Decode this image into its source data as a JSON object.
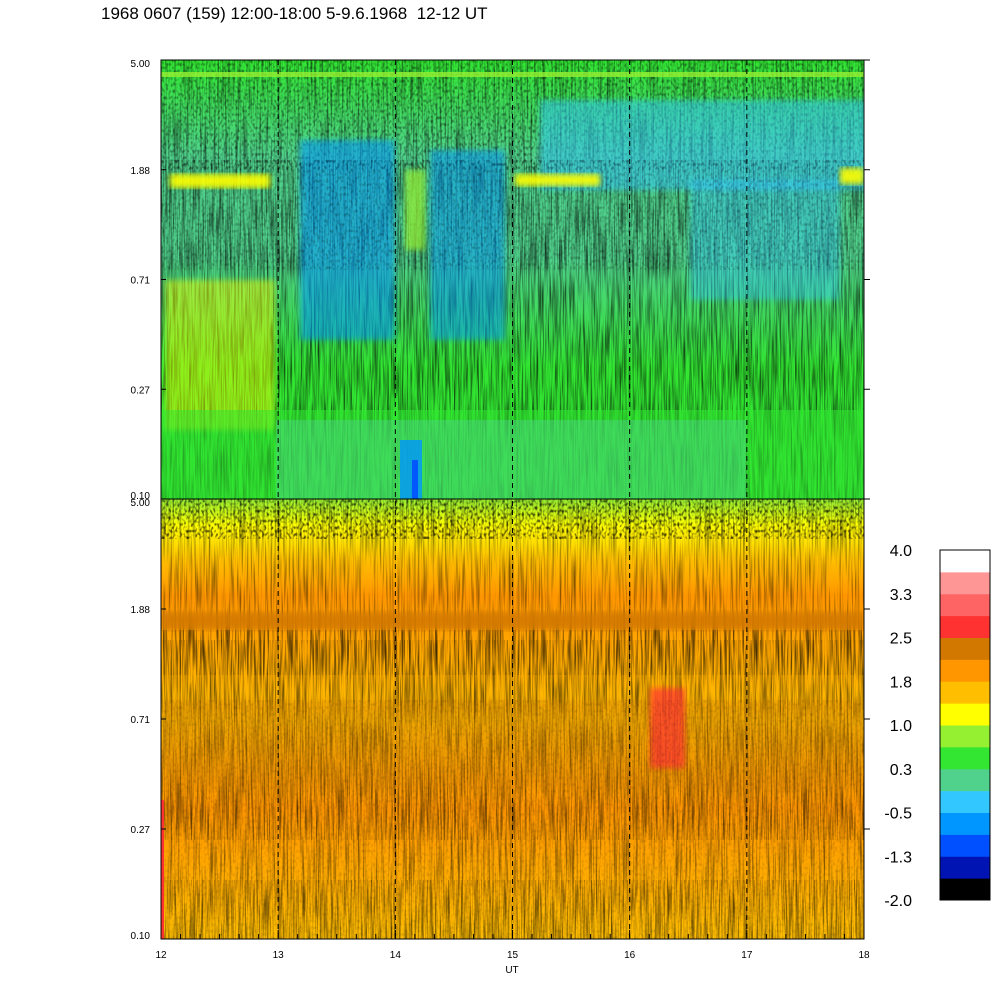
{
  "title": "1968 0607 (159) 12:00-18:00 5-9.6.1968  12-12 UT",
  "chart_data": [
    {
      "type": "heatmap",
      "panel": "upper",
      "x_range": [
        12,
        18
      ],
      "y_scale": "log",
      "y_ticks": [
        "5.00",
        "1.88",
        "0.71",
        "0.27",
        "0.10"
      ],
      "time_markers": [
        13,
        14,
        15,
        16,
        17
      ],
      "dominant_levels": {
        "background": 0.3,
        "upper_band_yellow_segments": [
          [
            12.1,
            12.9,
            1.0
          ],
          [
            15.1,
            15.8,
            1.0
          ],
          [
            17.8,
            18.0,
            1.0
          ]
        ],
        "blue_intervals": [
          [
            13.2,
            14.0,
            -0.9
          ],
          [
            14.4,
            15.0,
            -0.9
          ],
          [
            16.8,
            17.8,
            -0.6
          ]
        ],
        "low_freq_yellow": [
          12.05,
          12.7,
          1.0
        ]
      }
    },
    {
      "type": "heatmap",
      "panel": "lower",
      "x_range": [
        12,
        18
      ],
      "x_ticks": [
        "12",
        "13",
        "14",
        "15",
        "16",
        "17",
        "18"
      ],
      "xlabel": "UT",
      "y_scale": "log",
      "y_ticks": [
        "5.00",
        "1.88",
        "0.71",
        "0.27",
        "0.10"
      ],
      "time_markers": [
        13,
        14,
        15,
        16,
        17
      ],
      "dominant_levels": {
        "background": 1.8,
        "band_near_1.88": 2.2,
        "red_patch": [
          16.2,
          16.45,
          2.5
        ],
        "top_fringe": 0.5
      }
    }
  ],
  "colorbar": {
    "labels": [
      "4.0",
      "3.3",
      "2.5",
      "1.8",
      "1.0",
      "0.3",
      "-0.5",
      "-1.3",
      "-2.0"
    ],
    "colors": [
      "#000000",
      "#0014b4",
      "#0050ff",
      "#0096ff",
      "#32c8ff",
      "#50d28c",
      "#32e632",
      "#96f032",
      "#ffff00",
      "#ffbe00",
      "#ff9600",
      "#d27800",
      "#ff3232",
      "#ff6464",
      "#ff9696",
      "#ffffff"
    ]
  }
}
